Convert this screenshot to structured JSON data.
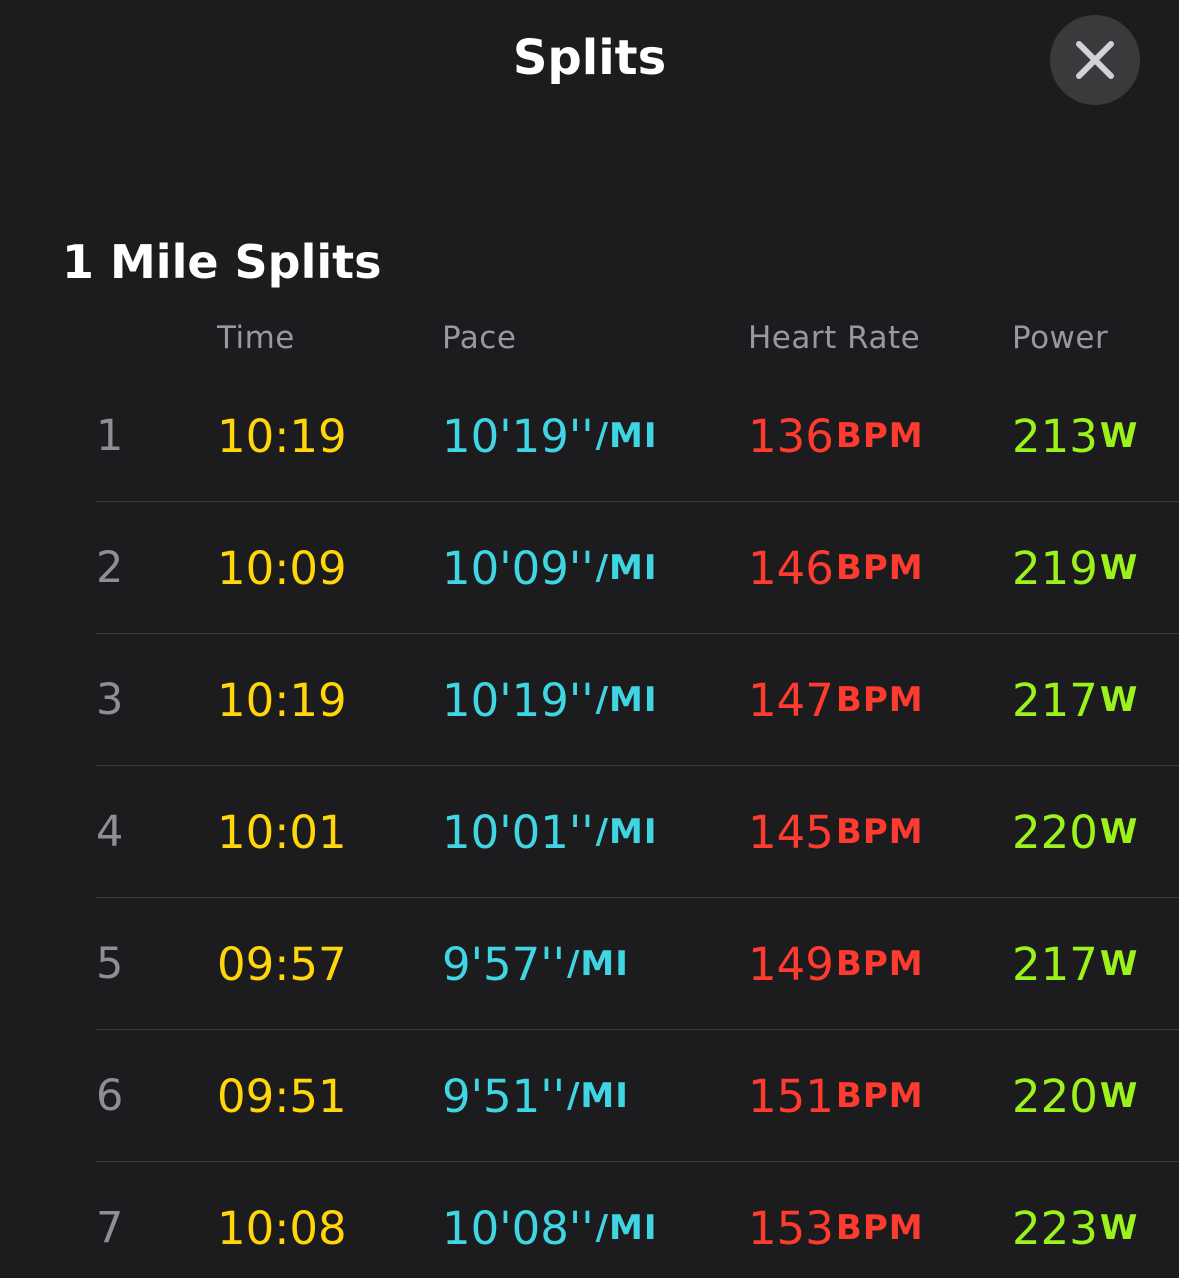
{
  "header": {
    "title": "Splits",
    "close_icon": "close-x-icon"
  },
  "section": {
    "title": "1 Mile Splits"
  },
  "columns": {
    "time": "Time",
    "pace": "Pace",
    "heart_rate": "Heart Rate",
    "power": "Power"
  },
  "units": {
    "pace": "/MI",
    "heart_rate": "BPM",
    "power": "W"
  },
  "colors": {
    "time": "#ffd60a",
    "pace": "#40d5e3",
    "heart_rate": "#ff3b30",
    "power": "#9cf31c"
  },
  "splits": [
    {
      "index": "1",
      "time": "10:19",
      "pace": "10'19''",
      "heart_rate": "136",
      "power": "213"
    },
    {
      "index": "2",
      "time": "10:09",
      "pace": "10'09''",
      "heart_rate": "146",
      "power": "219"
    },
    {
      "index": "3",
      "time": "10:19",
      "pace": "10'19''",
      "heart_rate": "147",
      "power": "217"
    },
    {
      "index": "4",
      "time": "10:01",
      "pace": "10'01''",
      "heart_rate": "145",
      "power": "220"
    },
    {
      "index": "5",
      "time": "09:57",
      "pace": "9'57''",
      "heart_rate": "149",
      "power": "217"
    },
    {
      "index": "6",
      "time": "09:51",
      "pace": "9'51''",
      "heart_rate": "151",
      "power": "220"
    },
    {
      "index": "7",
      "time": "10:08",
      "pace": "10'08''",
      "heart_rate": "153",
      "power": "223"
    }
  ]
}
